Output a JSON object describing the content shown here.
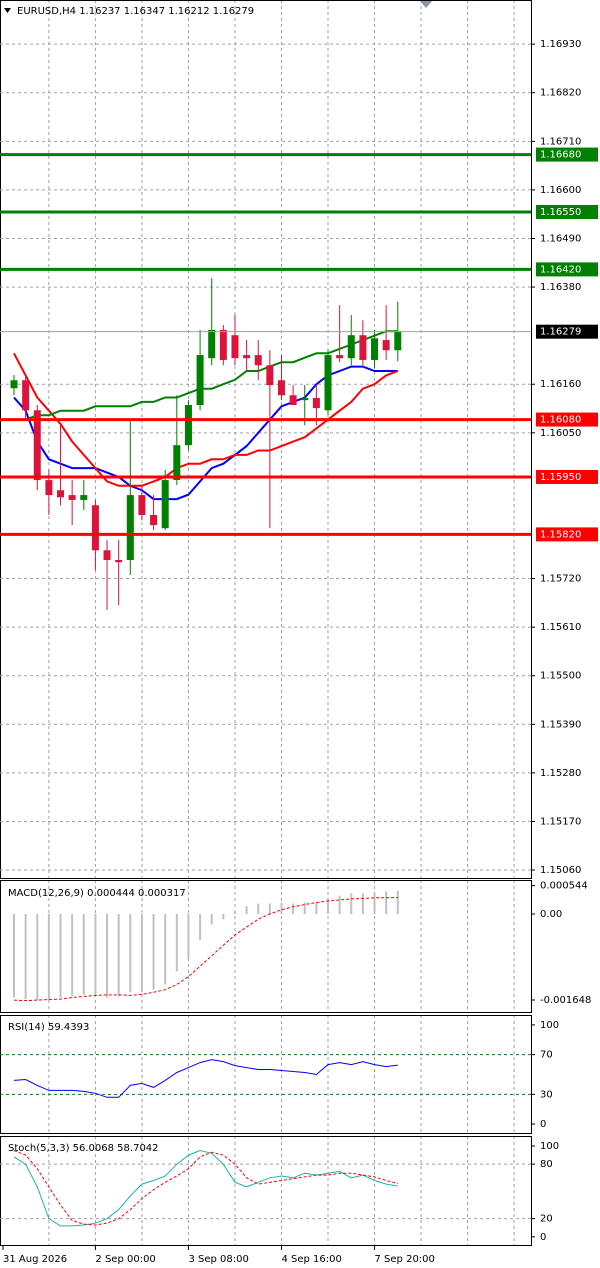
{
  "chart_data": [
    {
      "type": "candlestick",
      "title": "EURUSD,H4  1.16237 1.16347 1.16212 1.16279",
      "categories": [
        "31 Aug 2026",
        null,
        null,
        null,
        null,
        null,
        null,
        "2 Sep 00:00",
        null,
        null,
        null,
        null,
        null,
        null,
        null,
        "3 Sep 08:00",
        null,
        null,
        null,
        null,
        null,
        null,
        null,
        "4 Sep 16:00",
        null,
        null,
        null,
        null,
        null,
        null,
        null,
        "7 Sep 20:00",
        null,
        null
      ],
      "ohlc": [
        [
          1.16151,
          1.16181,
          1.16135,
          1.16169
        ],
        [
          1.16169,
          1.16181,
          1.16079,
          1.16101
        ],
        [
          1.16101,
          1.16113,
          1.1592,
          1.15943
        ],
        [
          1.15943,
          1.15966,
          1.15864,
          1.15909
        ],
        [
          1.1592,
          1.16067,
          1.15886,
          1.15904
        ],
        [
          1.15909,
          1.15943,
          1.15841,
          1.15898
        ],
        [
          1.15898,
          1.15943,
          1.15875,
          1.15909
        ],
        [
          1.15886,
          1.15898,
          1.15739,
          1.15784
        ],
        [
          1.15784,
          1.15807,
          1.15649,
          1.15762
        ],
        [
          1.15762,
          1.15807,
          1.1566,
          1.15757
        ],
        [
          1.15762,
          1.16079,
          1.15728,
          1.15909
        ],
        [
          1.15909,
          1.15932,
          1.15852,
          1.15864
        ],
        [
          1.15864,
          1.15909,
          1.1583,
          1.15841
        ],
        [
          1.15834,
          1.15966,
          1.1583,
          1.15943
        ],
        [
          1.15943,
          1.16135,
          1.15932,
          1.16022
        ],
        [
          1.16022,
          1.16124,
          1.16011,
          1.16113
        ],
        [
          1.16113,
          1.16283,
          1.16101,
          1.16226
        ],
        [
          1.16219,
          1.164,
          1.16203,
          1.16283
        ],
        [
          1.16283,
          1.16294,
          1.16203,
          1.16215
        ],
        [
          1.16271,
          1.16317,
          1.16203,
          1.16219
        ],
        [
          1.16226,
          1.1626,
          1.16192,
          1.16219
        ],
        [
          1.16226,
          1.1626,
          1.16169,
          1.16203
        ],
        [
          1.16203,
          1.16237,
          1.15834,
          1.16158
        ],
        [
          1.16169,
          1.16226,
          1.16124,
          1.16135
        ],
        [
          1.16135,
          1.16158,
          1.16113,
          1.16113
        ],
        [
          1.16124,
          1.16158,
          1.16067,
          1.16129
        ],
        [
          1.16129,
          1.16158,
          1.16067,
          1.16106
        ],
        [
          1.16101,
          1.16237,
          1.1609,
          1.16226
        ],
        [
          1.16226,
          1.16339,
          1.1621,
          1.16219
        ],
        [
          1.16219,
          1.16317,
          1.16203,
          1.16271
        ],
        [
          1.16271,
          1.16305,
          1.16203,
          1.16215
        ],
        [
          1.16215,
          1.16283,
          1.16197,
          1.16264
        ],
        [
          1.1626,
          1.16339,
          1.16215,
          1.16237
        ],
        [
          1.16237,
          1.16347,
          1.16212,
          1.16279
        ]
      ],
      "up_color": "#008000",
      "down_color": "#dc143c",
      "series": [
        {
          "color": "#0000ff",
          "values": [
            1.1613,
            1.161,
            1.1603,
            1.1599,
            1.1598,
            1.1597,
            1.1597,
            1.1597,
            1.1596,
            1.1595,
            1.1593,
            1.1592,
            1.159,
            1.159,
            1.159,
            1.1591,
            1.1594,
            1.1597,
            1.1598,
            1.16,
            1.1602,
            1.1605,
            1.1608,
            1.1611,
            1.1612,
            1.1613,
            1.1616,
            1.1618,
            1.1619,
            1.162,
            1.162,
            1.1619,
            1.1619,
            1.1619
          ]
        },
        {
          "color": "#ff0000",
          "values": [
            1.1623,
            1.1618,
            1.1613,
            1.161,
            1.1607,
            1.1603,
            1.16,
            1.1597,
            1.1594,
            1.1593,
            1.1593,
            1.1593,
            1.1594,
            1.1595,
            1.1597,
            1.1598,
            1.1598,
            1.1599,
            1.1599,
            1.16,
            1.16,
            1.1601,
            1.1601,
            1.1602,
            1.1603,
            1.1604,
            1.1606,
            1.1608,
            1.161,
            1.1612,
            1.1615,
            1.1616,
            1.1618,
            1.1619
          ]
        },
        {
          "color": "#008000",
          "values": [
            1.1608,
            1.1608,
            1.1609,
            1.1609,
            1.161,
            1.161,
            1.161,
            1.1611,
            1.1611,
            1.1611,
            1.1611,
            1.1612,
            1.1612,
            1.1613,
            1.1613,
            1.1614,
            1.1615,
            1.1615,
            1.1616,
            1.1617,
            1.1619,
            1.1619,
            1.162,
            1.1621,
            1.1621,
            1.1622,
            1.1623,
            1.1623,
            1.1624,
            1.1625,
            1.1626,
            1.1627,
            1.1628,
            1.1628
          ]
        }
      ],
      "levels": [
        {
          "value": 1.1668,
          "label": "1.16680",
          "color": "#008000"
        },
        {
          "value": 1.1655,
          "label": "1.16550",
          "color": "#008000"
        },
        {
          "value": 1.1642,
          "label": "1.16420",
          "color": "#008000"
        },
        {
          "value": 1.1608,
          "label": "1.16080",
          "color": "#ff0000"
        },
        {
          "value": 1.1595,
          "label": "1.15950",
          "color": "#ff0000"
        },
        {
          "value": 1.1582,
          "label": "1.15820",
          "color": "#ff0000"
        }
      ],
      "current": {
        "value": 1.16279,
        "label": "1.16279"
      },
      "ylim": [
        1.15042,
        1.1703
      ],
      "yticks": [
        {
          "value": 1.1693,
          "label": "1.16930"
        },
        {
          "value": 1.1682,
          "label": "1.16820"
        },
        {
          "value": 1.1671,
          "label": "1.16710"
        },
        {
          "value": 1.166,
          "label": "1.16600"
        },
        {
          "value": 1.1649,
          "label": "1.16490"
        },
        {
          "value": 1.1638,
          "label": "1.16380"
        },
        {
          "value": 1.1616,
          "label": "1.16160"
        },
        {
          "value": 1.1605,
          "label": "1.16050"
        },
        {
          "value": 1.1572,
          "label": "1.15720"
        },
        {
          "value": 1.1561,
          "label": "1.15610"
        },
        {
          "value": 1.155,
          "label": "1.15500"
        },
        {
          "value": 1.1539,
          "label": "1.15390"
        },
        {
          "value": 1.1528,
          "label": "1.15280"
        },
        {
          "value": 1.1517,
          "label": "1.15170"
        },
        {
          "value": 1.1506,
          "label": "1.15060"
        }
      ],
      "grid": true
    },
    {
      "type": "macd",
      "title": "MACD(12,26,9) 0.000444 0.000317",
      "color": "#c0c0c0",
      "signal_color": "#ff0000",
      "values": [
        -0.0016,
        -0.00163,
        -0.00165,
        -0.00164,
        -0.0016,
        -0.00158,
        -0.00155,
        -0.00158,
        -0.0016,
        -0.00158,
        -0.0015,
        -0.0015,
        -0.00145,
        -0.00135,
        -0.0011,
        -0.00085,
        -0.0005,
        -0.0002,
        -0.0001,
        5e-05,
        0.00015,
        0.0002,
        0.0002,
        0.00022,
        0.0002,
        0.00022,
        0.00022,
        0.0003,
        0.00035,
        0.0004,
        0.0004,
        0.00042,
        0.00043,
        0.000444
      ],
      "signal": [
        -0.00165,
        -0.00166,
        -0.00165,
        -0.00164,
        -0.00163,
        -0.0016,
        -0.00158,
        -0.00156,
        -0.00155,
        -0.00155,
        -0.00156,
        -0.00154,
        -0.0015,
        -0.00145,
        -0.00135,
        -0.0012,
        -0.001,
        -0.0008,
        -0.0006,
        -0.0004,
        -0.00025,
        -0.0001,
        0,
        8e-05,
        0.00014,
        0.00018,
        0.00022,
        0.00025,
        0.00027,
        0.00029,
        0.0003,
        0.00031,
        0.00031,
        0.000317
      ],
      "ylim": [
        -0.001878,
        0.000652
      ],
      "yticks": [
        0.000544,
        {
          "value": 0,
          "label": "0.00"
        },
        -0.001648
      ]
    },
    {
      "type": "line",
      "title": "RSI(14) 59.4393",
      "series": [
        {
          "color": "#0000ff",
          "values": [
            44,
            45,
            39,
            34,
            34,
            34,
            33,
            31,
            27,
            27,
            39,
            41,
            37,
            44,
            52,
            57,
            62,
            65,
            63,
            59,
            57,
            55,
            55,
            54,
            53,
            52,
            50,
            60,
            62,
            60,
            63,
            60,
            58,
            59.4393
          ]
        }
      ],
      "levels": [
        70,
        30
      ],
      "level_color": "#008000",
      "ylim": [
        -9,
        110
      ],
      "yticks": [
        100,
        70,
        30,
        0
      ]
    },
    {
      "type": "line",
      "title": "Stoch(5,3,3) 56.0068 58.7042",
      "series": [
        {
          "color": "#20b2aa",
          "values": [
            88,
            80,
            55,
            20,
            12,
            12,
            13,
            15,
            20,
            30,
            45,
            58,
            62,
            67,
            80,
            90,
            95,
            92,
            80,
            60,
            55,
            60,
            65,
            67,
            65,
            70,
            68,
            70,
            72,
            65,
            68,
            62,
            58,
            56.0068
          ]
        },
        {
          "color": "#ff0000",
          "dashed": true,
          "values": [
            95,
            90,
            75,
            55,
            35,
            18,
            14,
            13,
            15,
            20,
            30,
            42,
            52,
            60,
            67,
            75,
            88,
            93,
            90,
            80,
            65,
            58,
            60,
            62,
            64,
            66,
            68,
            68,
            70,
            70,
            68,
            66,
            62,
            58.7042
          ]
        }
      ],
      "levels": [
        80,
        20
      ],
      "level_color": "#a0a0a0",
      "ylim": [
        -9,
        111
      ],
      "yticks": [
        100,
        80,
        20,
        0
      ]
    }
  ]
}
